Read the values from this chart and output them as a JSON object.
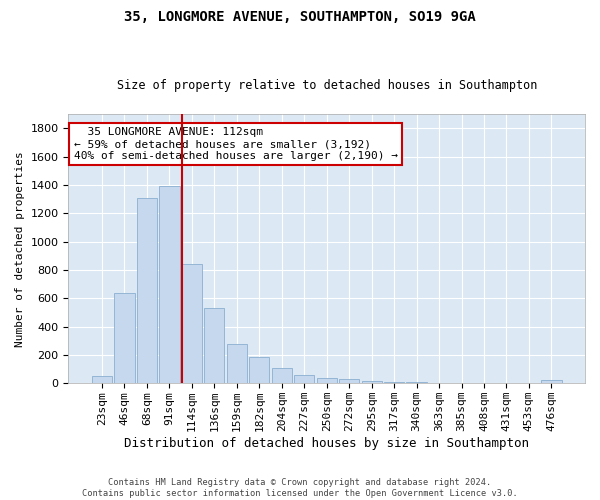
{
  "title1": "35, LONGMORE AVENUE, SOUTHAMPTON, SO19 9GA",
  "title2": "Size of property relative to detached houses in Southampton",
  "xlabel": "Distribution of detached houses by size in Southampton",
  "ylabel": "Number of detached properties",
  "categories": [
    "23sqm",
    "46sqm",
    "68sqm",
    "91sqm",
    "114sqm",
    "136sqm",
    "159sqm",
    "182sqm",
    "204sqm",
    "227sqm",
    "250sqm",
    "272sqm",
    "295sqm",
    "317sqm",
    "340sqm",
    "363sqm",
    "385sqm",
    "408sqm",
    "431sqm",
    "453sqm",
    "476sqm"
  ],
  "values": [
    50,
    640,
    1310,
    1390,
    840,
    530,
    280,
    185,
    105,
    60,
    35,
    30,
    15,
    10,
    10,
    5,
    5,
    5,
    5,
    5,
    20
  ],
  "bar_color": "#c5d8ed",
  "bar_edge_color": "#8ab0d0",
  "red_line_x": 4,
  "annotation_text": "  35 LONGMORE AVENUE: 112sqm\n← 59% of detached houses are smaller (3,192)\n40% of semi-detached houses are larger (2,190) →",
  "annotation_box_color": "#ffffff",
  "annotation_box_edge_color": "#cc0000",
  "footer1": "Contains HM Land Registry data © Crown copyright and database right 2024.",
  "footer2": "Contains public sector information licensed under the Open Government Licence v3.0.",
  "ylim": [
    0,
    1900
  ],
  "yticks": [
    0,
    200,
    400,
    600,
    800,
    1000,
    1200,
    1400,
    1600,
    1800
  ],
  "plot_bg_color": "#dce9f5",
  "fig_bg_color": "#ffffff"
}
